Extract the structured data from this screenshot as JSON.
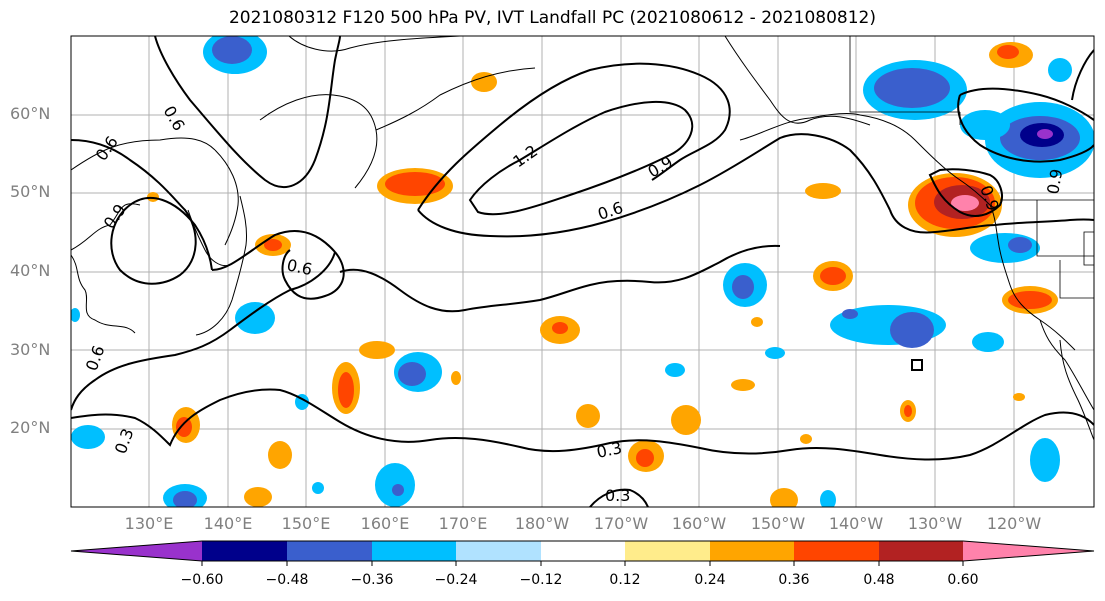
{
  "title": "2021080312 F120 500 hPa PV, IVT Landfall PC (2021080612 - 2021080812)",
  "map": {
    "lat_labels": [
      "60°N",
      "50°N",
      "40°N",
      "30°N",
      "20°N"
    ],
    "lon_labels": [
      "130°E",
      "140°E",
      "150°E",
      "160°E",
      "170°E",
      "180°W",
      "170°W",
      "160°W",
      "150°W",
      "140°W",
      "130°W",
      "120°W"
    ],
    "contour_labels": [
      "0.6",
      "0.6",
      "0.9",
      "0.6",
      "1.2",
      "0.9",
      "0.6",
      "0.6",
      "0.9",
      "0.9",
      "0.3",
      "0.3",
      "0.3"
    ],
    "colorbar": {
      "ticks": [
        "−0.60",
        "−0.48",
        "−0.36",
        "−0.24",
        "−0.12",
        "0.12",
        "0.24",
        "0.36",
        "0.48",
        "0.60"
      ],
      "colors": [
        "#9932cc",
        "#00008b",
        "#3a5fcd",
        "#00bfff",
        "#b0e2ff",
        "#ffffff",
        "#ffec8b",
        "#ffa500",
        "#ff4500",
        "#b22222",
        "#ff82ab"
      ]
    }
  }
}
